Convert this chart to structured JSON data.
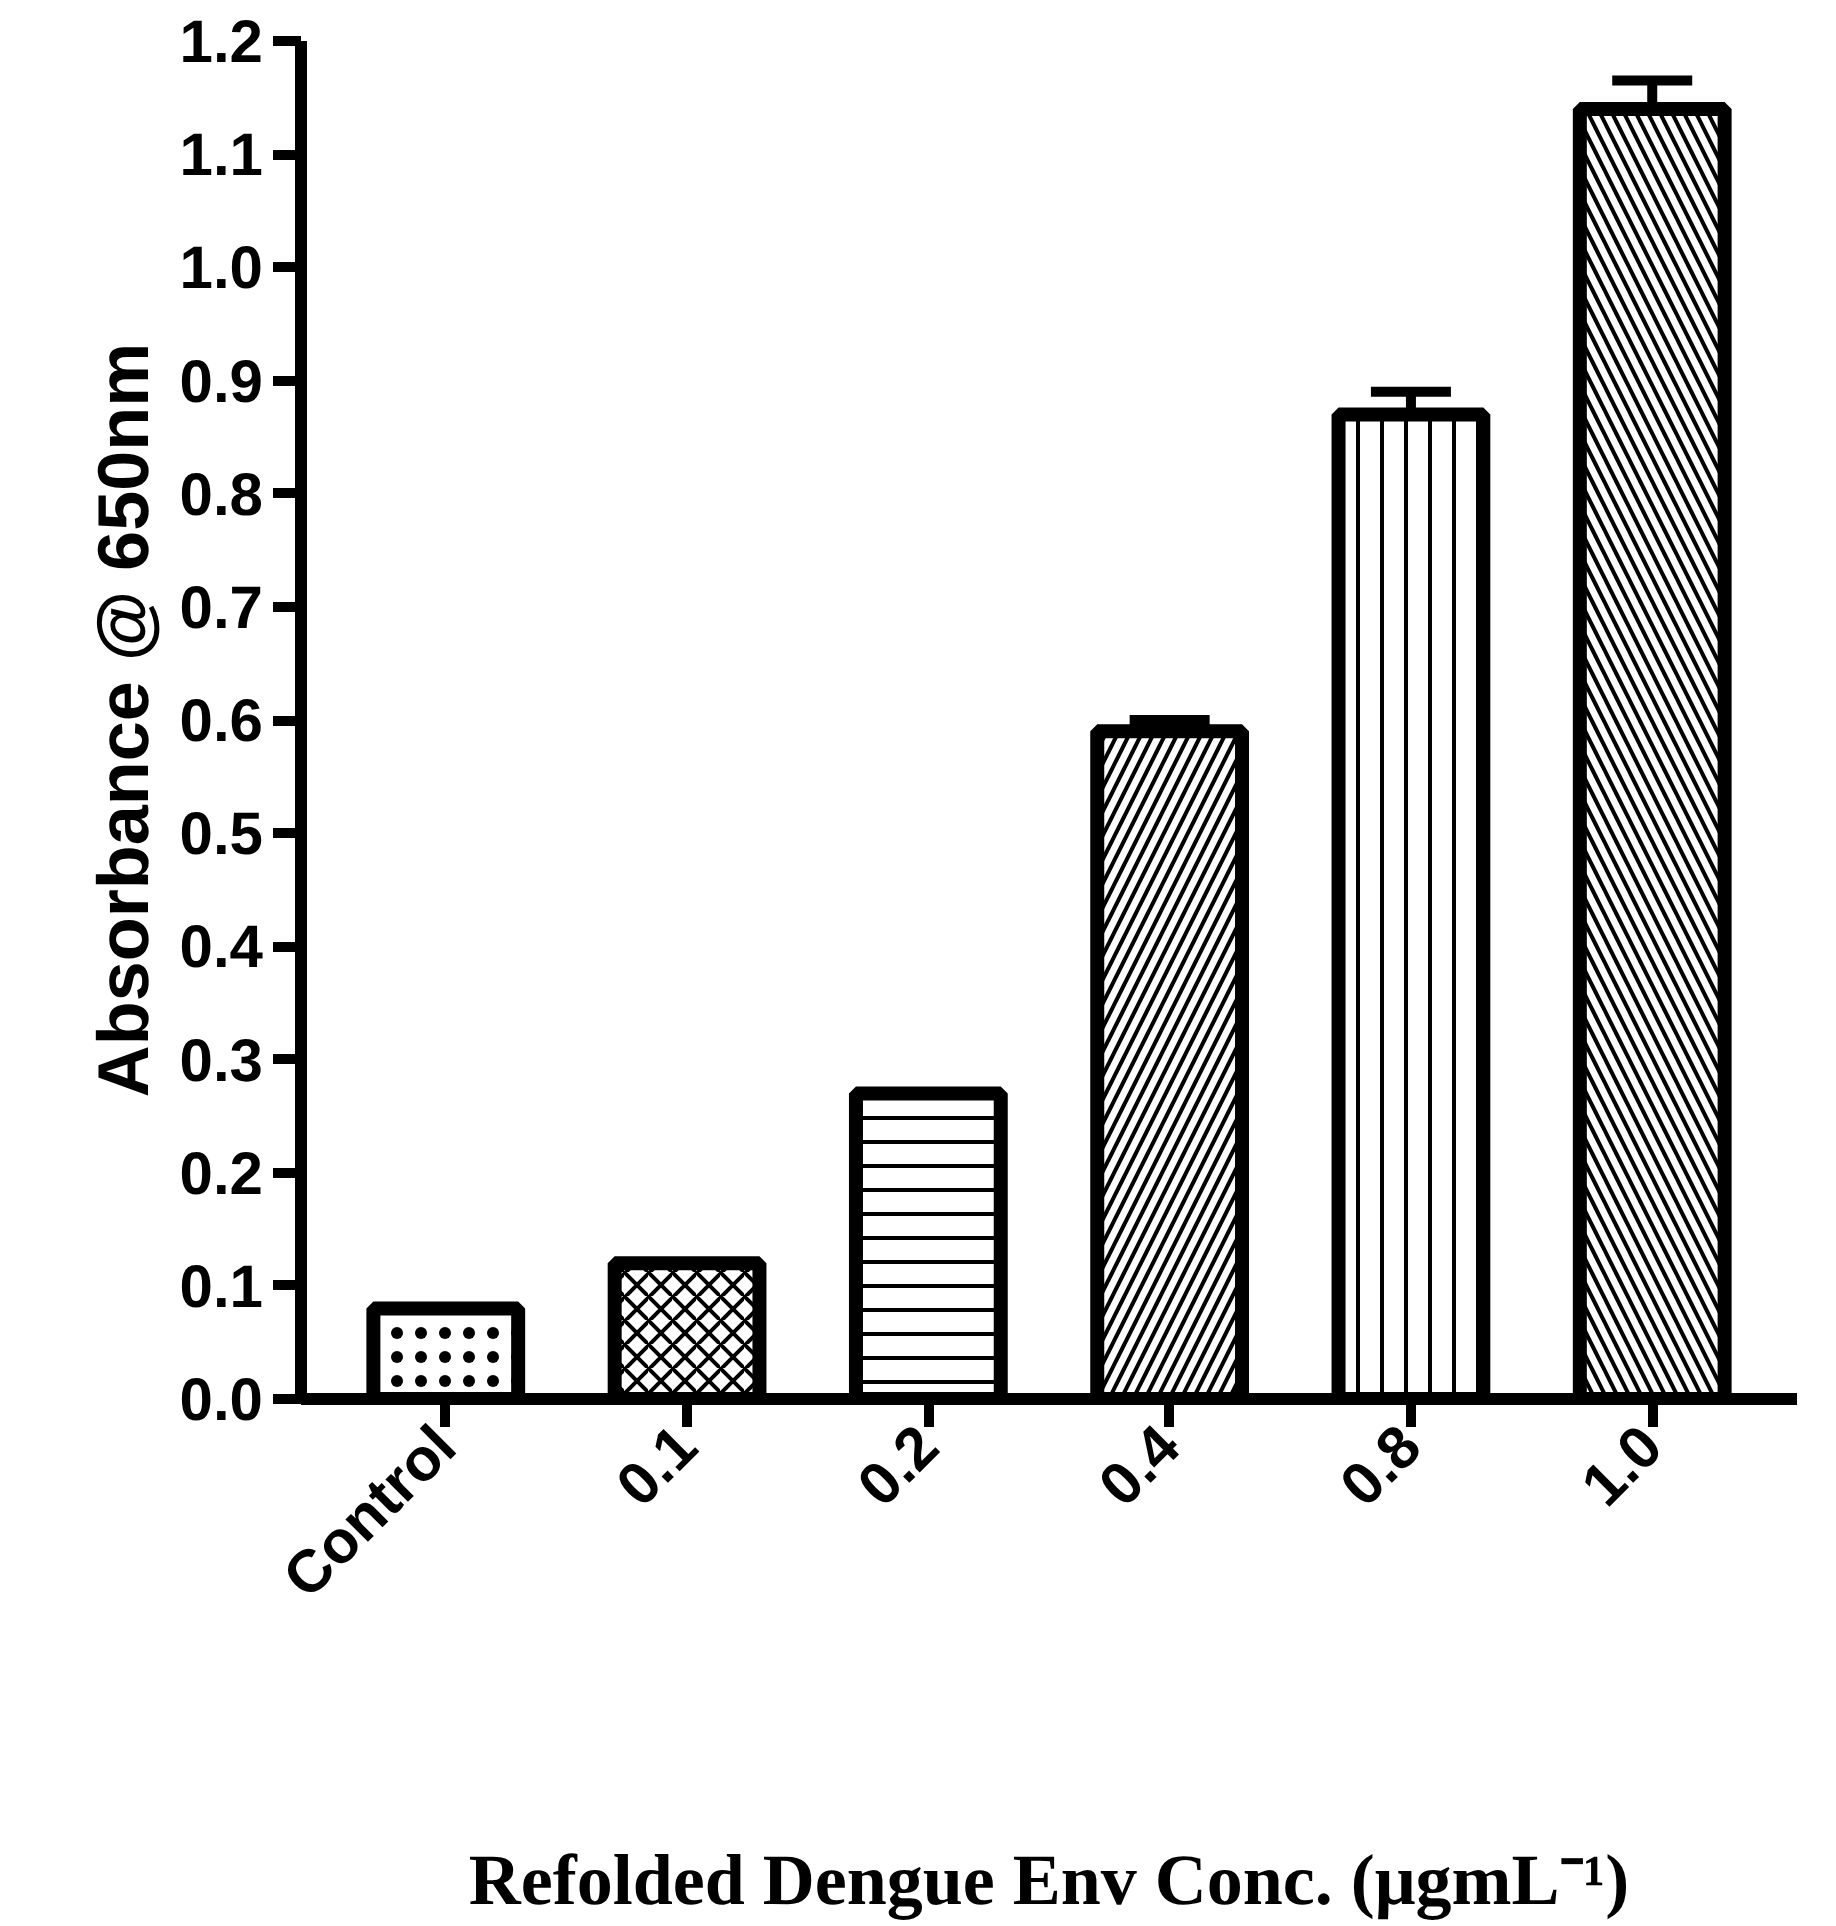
{
  "chart_data": {
    "type": "bar",
    "xlabel": "Refolded Dengue Env Conc. (μgmL⁻¹)",
    "ylabel": "Absorbance @ 650nm",
    "categories": [
      "Control",
      "0.1",
      "0.2",
      "0.4",
      "0.8",
      "1.0"
    ],
    "values": [
      0.08,
      0.12,
      0.27,
      0.59,
      0.87,
      1.14
    ],
    "errors": [
      null,
      null,
      null,
      0.01,
      0.02,
      0.025
    ],
    "color": "#ffffff",
    "ylim": [
      0,
      1.2
    ],
    "yticks": [
      {
        "value": 0,
        "label": "0.0"
      },
      0.1,
      0.2,
      0.3,
      0.4,
      0.5,
      0.6,
      0.7,
      0.8,
      0.9,
      {
        "value": 1.0,
        "label": "1.0"
      },
      1.1,
      1.2
    ],
    "grid": false
  }
}
